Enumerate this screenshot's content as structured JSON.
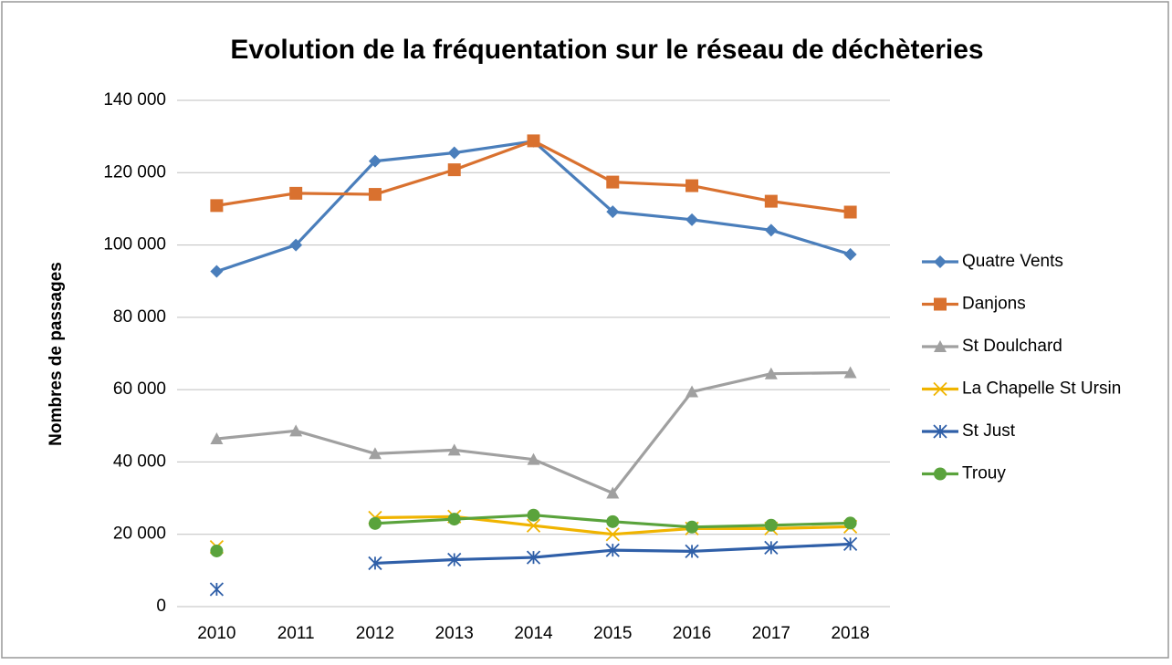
{
  "chart_data": {
    "type": "line",
    "title": "Evolution de la fréquentation sur le réseau de déchèteries",
    "y_label": "Nombres de passages",
    "categories": [
      "2010",
      "2011",
      "2012",
      "2013",
      "2014",
      "2015",
      "2016",
      "2017",
      "2018"
    ],
    "series": [
      {
        "name": "Quatre Vents",
        "color": "#4a7ebb",
        "marker": "diamond",
        "values": [
          92700,
          100000,
          123200,
          125500,
          128700,
          109200,
          107000,
          104100,
          97400
        ]
      },
      {
        "name": "Danjons",
        "color": "#d9712f",
        "marker": "square",
        "values": [
          110900,
          114300,
          114000,
          120800,
          128800,
          117400,
          116400,
          112100,
          109100
        ]
      },
      {
        "name": "St Doulchard",
        "color": "#a0a0a0",
        "marker": "triangle",
        "values": [
          46400,
          48600,
          42300,
          43300,
          40700,
          31400,
          59400,
          64400,
          64700
        ]
      },
      {
        "name": "La Chapelle St Ursin",
        "color": "#f0b400",
        "marker": "x",
        "values": [
          16500,
          null,
          24600,
          24900,
          22400,
          20000,
          21600,
          21600,
          22100
        ]
      },
      {
        "name": "St Just",
        "color": "#2f5fa8",
        "marker": "star",
        "values": [
          4800,
          null,
          12000,
          13000,
          13600,
          15600,
          15300,
          16300,
          17300
        ]
      },
      {
        "name": "Trouy",
        "color": "#5aa33c",
        "marker": "circle",
        "values": [
          15400,
          null,
          23000,
          24200,
          25300,
          23500,
          22000,
          22500,
          23100
        ]
      }
    ],
    "ylim": [
      0,
      140000
    ],
    "yticks": [
      0,
      {
        "value": 20000,
        "label": "20 000"
      },
      {
        "value": 40000,
        "label": "40 000"
      },
      {
        "value": 60000,
        "label": "60 000"
      },
      {
        "value": 80000,
        "label": "80 000"
      },
      {
        "value": 100000,
        "label": "100 000"
      },
      {
        "value": 120000,
        "label": "120 000"
      },
      {
        "value": 140000,
        "label": "140 000"
      }
    ],
    "grid": true,
    "legend": "right"
  }
}
